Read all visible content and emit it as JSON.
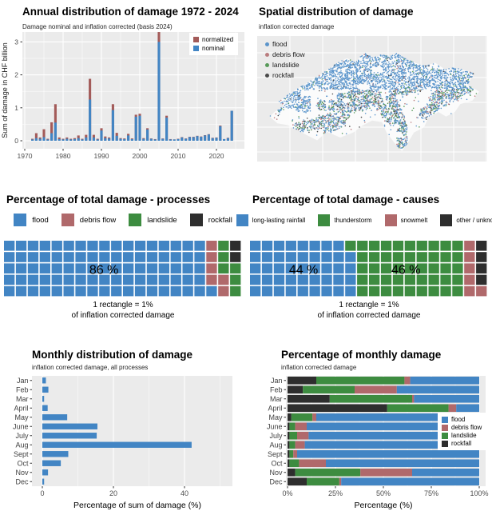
{
  "colors": {
    "flood": "#4285c4",
    "debris_flow": "#b0696b",
    "landslide": "#3d8c40",
    "rockfall": "#2e2e2e",
    "normalized": "#a35b59",
    "nominal": "#4285c4",
    "rainfall": "#4285c4",
    "thunderstorm": "#3d8c40",
    "snowmelt": "#b0696b",
    "other": "#2e2e2e",
    "panel_bg": "#ebebeb",
    "grid": "#ffffff",
    "axis_text": "#4d4d4d"
  },
  "panels": {
    "annual": {
      "title": "Annual distribution of damage 1972 - 2024",
      "subtitle": "Damage nominal and inflation corrected (basis 2024)",
      "ylabel": "Sum of damage in CHF billion",
      "legend": [
        {
          "label": "normalized",
          "color": "normalized"
        },
        {
          "label": "nominal",
          "color": "nominal"
        }
      ]
    },
    "map": {
      "title": "Spatial distribution of damage",
      "subtitle": "inflation corrected damage",
      "legend": [
        {
          "label": "flood",
          "color": "flood"
        },
        {
          "label": "debris flow",
          "color": "debris_flow"
        },
        {
          "label": "landslide",
          "color": "landslide"
        },
        {
          "label": "rockfall",
          "color": "rockfall"
        }
      ]
    },
    "processes": {
      "title": "Percentage of total damage - processes",
      "legend": [
        {
          "label": "flood",
          "color": "flood"
        },
        {
          "label": "debris flow",
          "color": "debris_flow"
        },
        {
          "label": "landslide",
          "color": "landslide"
        },
        {
          "label": "rockfall",
          "color": "rockfall"
        }
      ],
      "caption_line1": "1 rectangle = 1%",
      "caption_line2": "of inflation corrected damage"
    },
    "causes": {
      "title": "Percentage of total damage - causes",
      "legend": [
        {
          "label": "long-lasting rainfall",
          "color": "rainfall"
        },
        {
          "label": "thunderstorm",
          "color": "thunderstorm"
        },
        {
          "label": "snowmelt",
          "color": "snowmelt"
        },
        {
          "label": "other / unknown",
          "color": "other"
        }
      ],
      "caption_line1": "1 rectangle = 1%",
      "caption_line2": "of inflation corrected damage"
    },
    "monthly": {
      "title": "Monthly distribution of damage",
      "subtitle": "inflation corrected damage, all processes",
      "xlabel": "Percentage of sum of damage (%)"
    },
    "monthly_pct": {
      "title": "Percentage of monthly damage",
      "subtitle": "inflation corrected damage",
      "xlabel": "Percentage (%)",
      "legend": [
        {
          "label": "flood",
          "color": "flood"
        },
        {
          "label": "debris flow",
          "color": "debris_flow"
        },
        {
          "label": "landslide",
          "color": "landslide"
        },
        {
          "label": "rockfall",
          "color": "rockfall"
        }
      ]
    }
  },
  "chart_data": [
    {
      "id": "annual",
      "type": "bar",
      "subtype": "overlaid-vertical",
      "title": "Annual distribution of damage 1972 - 2024",
      "ylabel": "Sum of damage in CHF billion",
      "ylim": [
        0,
        3.4
      ],
      "yticks": [
        0,
        1,
        2,
        3
      ],
      "xticks": [
        1970,
        1980,
        1990,
        2000,
        2010,
        2020
      ],
      "year_start": 1972,
      "categories": [
        1972,
        1973,
        1974,
        1975,
        1976,
        1977,
        1978,
        1979,
        1980,
        1981,
        1982,
        1983,
        1984,
        1985,
        1986,
        1987,
        1988,
        1989,
        1990,
        1991,
        1992,
        1993,
        1994,
        1995,
        1996,
        1997,
        1998,
        1999,
        2000,
        2001,
        2002,
        2003,
        2004,
        2005,
        2006,
        2007,
        2008,
        2009,
        2010,
        2011,
        2012,
        2013,
        2014,
        2015,
        2016,
        2017,
        2018,
        2019,
        2020,
        2021,
        2022,
        2023,
        2024
      ],
      "series": [
        {
          "name": "normalized",
          "color": "normalized",
          "values": [
            0.06,
            0.23,
            0.1,
            0.35,
            0.06,
            0.56,
            1.11,
            0.1,
            0.06,
            0.1,
            0.06,
            0.08,
            0.16,
            0.06,
            0.18,
            1.88,
            0.18,
            0.06,
            0.38,
            0.13,
            0.1,
            1.11,
            0.24,
            0.08,
            0.07,
            0.21,
            0.07,
            0.79,
            0.82,
            0.08,
            0.38,
            0.07,
            0.05,
            3.3,
            0.07,
            0.76,
            0.05,
            0.04,
            0.06,
            0.11,
            0.07,
            0.12,
            0.12,
            0.15,
            0.13,
            0.17,
            0.2,
            0.09,
            0.1,
            0.46,
            0.05,
            0.09,
            0.91
          ]
        },
        {
          "name": "nominal",
          "color": "nominal",
          "values": [
            0.04,
            0.08,
            0.06,
            0.11,
            0.04,
            0.23,
            0.55,
            0.05,
            0.04,
            0.06,
            0.04,
            0.05,
            0.08,
            0.04,
            0.1,
            1.25,
            0.1,
            0.04,
            0.31,
            0.08,
            0.07,
            0.93,
            0.15,
            0.06,
            0.05,
            0.16,
            0.05,
            0.73,
            0.76,
            0.06,
            0.34,
            0.06,
            0.04,
            3.0,
            0.06,
            0.7,
            0.04,
            0.04,
            0.05,
            0.1,
            0.06,
            0.11,
            0.11,
            0.14,
            0.12,
            0.16,
            0.19,
            0.08,
            0.09,
            0.44,
            0.05,
            0.08,
            0.91
          ]
        }
      ]
    },
    {
      "id": "map",
      "type": "scatter",
      "subtype": "map-switzerland",
      "title": "Spatial distribution of damage",
      "legend": [
        "flood",
        "debris flow",
        "landslide",
        "rockfall"
      ],
      "outline": [
        [
          0.035,
          0.66
        ],
        [
          0.06,
          0.615
        ],
        [
          0.1,
          0.565
        ],
        [
          0.075,
          0.53
        ],
        [
          0.14,
          0.44
        ],
        [
          0.2,
          0.37
        ],
        [
          0.255,
          0.305
        ],
        [
          0.315,
          0.225
        ],
        [
          0.345,
          0.185
        ],
        [
          0.385,
          0.145
        ],
        [
          0.425,
          0.185
        ],
        [
          0.445,
          0.135
        ],
        [
          0.47,
          0.1
        ],
        [
          0.505,
          0.14
        ],
        [
          0.545,
          0.115
        ],
        [
          0.575,
          0.13
        ],
        [
          0.61,
          0.105
        ],
        [
          0.655,
          0.155
        ],
        [
          0.7,
          0.19
        ],
        [
          0.745,
          0.215
        ],
        [
          0.785,
          0.185
        ],
        [
          0.83,
          0.245
        ],
        [
          0.87,
          0.23
        ],
        [
          0.905,
          0.245
        ],
        [
          0.965,
          0.28
        ],
        [
          0.93,
          0.38
        ],
        [
          0.985,
          0.44
        ],
        [
          0.955,
          0.52
        ],
        [
          0.9,
          0.55
        ],
        [
          0.875,
          0.62
        ],
        [
          0.835,
          0.66
        ],
        [
          0.8,
          0.62
        ],
        [
          0.755,
          0.67
        ],
        [
          0.735,
          0.755
        ],
        [
          0.69,
          0.8
        ],
        [
          0.665,
          0.88
        ],
        [
          0.635,
          0.965
        ],
        [
          0.6,
          0.89
        ],
        [
          0.565,
          0.8
        ],
        [
          0.545,
          0.71
        ],
        [
          0.5,
          0.695
        ],
        [
          0.455,
          0.74
        ],
        [
          0.415,
          0.8
        ],
        [
          0.355,
          0.845
        ],
        [
          0.295,
          0.795
        ],
        [
          0.25,
          0.87
        ],
        [
          0.195,
          0.815
        ],
        [
          0.155,
          0.77
        ],
        [
          0.115,
          0.735
        ],
        [
          0.07,
          0.72
        ]
      ],
      "valleys": [
        [
          [
            0.16,
            0.76
          ],
          [
            0.25,
            0.72
          ],
          [
            0.34,
            0.655
          ],
          [
            0.43,
            0.565
          ],
          [
            0.5,
            0.5
          ]
        ],
        [
          [
            0.66,
            0.42
          ],
          [
            0.745,
            0.37
          ],
          [
            0.83,
            0.315
          ],
          [
            0.9,
            0.28
          ]
        ],
        [
          [
            0.735,
            0.63
          ],
          [
            0.81,
            0.545
          ],
          [
            0.885,
            0.46
          ],
          [
            0.945,
            0.4
          ]
        ],
        [
          [
            0.585,
            0.5
          ],
          [
            0.615,
            0.62
          ],
          [
            0.635,
            0.75
          ],
          [
            0.635,
            0.9
          ]
        ],
        [
          [
            0.5,
            0.36
          ],
          [
            0.515,
            0.46
          ],
          [
            0.53,
            0.56
          ]
        ],
        [
          [
            0.36,
            0.5
          ],
          [
            0.43,
            0.47
          ],
          [
            0.5,
            0.44
          ]
        ],
        [
          [
            0.27,
            0.56
          ],
          [
            0.37,
            0.565
          ],
          [
            0.47,
            0.56
          ]
        ],
        [
          [
            0.655,
            0.25
          ],
          [
            0.69,
            0.33
          ]
        ],
        [
          [
            0.555,
            0.6
          ],
          [
            0.585,
            0.7
          ]
        ],
        [
          [
            0.6,
            0.44
          ],
          [
            0.66,
            0.42
          ]
        ],
        [
          [
            0.78,
            0.5
          ],
          [
            0.84,
            0.42
          ]
        ],
        [
          [
            0.3,
            0.77
          ],
          [
            0.36,
            0.7
          ]
        ]
      ],
      "lakes": [
        [
          0.125,
          0.635,
          0.045
        ],
        [
          0.205,
          0.455,
          0.03
        ],
        [
          0.525,
          0.245,
          0.025
        ],
        [
          0.46,
          0.4,
          0.03
        ],
        [
          0.38,
          0.52,
          0.02
        ],
        [
          0.615,
          0.82,
          0.025
        ]
      ]
    },
    {
      "id": "waffle-processes",
      "type": "heatmap",
      "subtype": "waffle-100",
      "title": "Percentage of total damage - processes",
      "rows": 5,
      "cols": 20,
      "categories": [
        "flood",
        "debris flow",
        "landslide",
        "rockfall"
      ],
      "color_keys": [
        "flood",
        "debris_flow",
        "landslide",
        "rockfall"
      ],
      "values": [
        86,
        6,
        6,
        2
      ],
      "labels": [
        {
          "text": "86 %",
          "fx": 0.42,
          "fy": 0.5
        }
      ]
    },
    {
      "id": "waffle-causes",
      "type": "heatmap",
      "subtype": "waffle-100",
      "title": "Percentage of total damage - causes",
      "rows": 5,
      "cols": 20,
      "categories": [
        "long-lasting rainfall",
        "thunderstorm",
        "snowmelt",
        "other / unknown"
      ],
      "color_keys": [
        "rainfall",
        "thunderstorm",
        "snowmelt",
        "other"
      ],
      "values": [
        44,
        46,
        6,
        4
      ],
      "labels": [
        {
          "text": "44 %",
          "fx": 0.225,
          "fy": 0.5
        },
        {
          "text": "46 %",
          "fx": 0.655,
          "fy": 0.5
        }
      ]
    },
    {
      "id": "monthly",
      "type": "bar",
      "subtype": "horizontal",
      "title": "Monthly distribution of damage",
      "categories": [
        "Jan",
        "Feb",
        "Mar",
        "April",
        "May",
        "June",
        "July",
        "Aug",
        "Sept",
        "Oct",
        "Nov",
        "Dec"
      ],
      "values": [
        1.0,
        1.7,
        0.5,
        1.5,
        7.0,
        15.5,
        15.3,
        42.0,
        7.3,
        5.2,
        1.6,
        0.5
      ],
      "xlabel": "Percentage of sum of damage (%)",
      "xlim": [
        0,
        53.5
      ],
      "xticks": [
        0,
        20,
        40
      ],
      "bar_color": "flood"
    },
    {
      "id": "monthly-pct",
      "type": "bar",
      "subtype": "stacked-horizontal",
      "title": "Percentage of monthly damage",
      "categories": [
        "Jan",
        "Feb",
        "Mar",
        "April",
        "May",
        "June",
        "July",
        "Aug",
        "Sept",
        "Oct",
        "Nov",
        "Dec"
      ],
      "series": [
        {
          "name": "rockfall",
          "color": "rockfall",
          "values": [
            15,
            8,
            22,
            52,
            2,
            1,
            1,
            1,
            1,
            1,
            4,
            10
          ]
        },
        {
          "name": "landslide",
          "color": "landslide",
          "values": [
            46,
            27,
            43,
            32,
            11,
            3,
            4,
            3,
            2,
            5,
            34,
            17
          ]
        },
        {
          "name": "debris flow",
          "color": "debris_flow",
          "values": [
            3,
            22,
            1,
            4,
            2,
            6,
            6,
            5,
            2,
            14,
            27,
            1
          ]
        },
        {
          "name": "flood",
          "color": "flood",
          "values": [
            36,
            43,
            34,
            12,
            85,
            90,
            89,
            91,
            95,
            80,
            35,
            72
          ]
        }
      ],
      "xlabel": "Percentage (%)",
      "xticks_labels": [
        "0%",
        "25%",
        "50%",
        "75%",
        "100%"
      ],
      "xticks": [
        0,
        25,
        50,
        75,
        100
      ]
    }
  ]
}
